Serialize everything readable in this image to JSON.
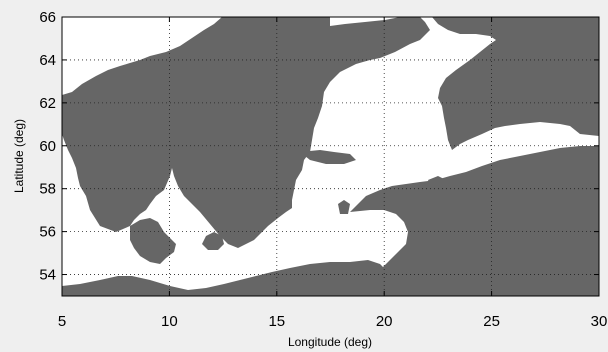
{
  "figure": {
    "xlabel": "Longitude (deg)",
    "ylabel": "Latitude (deg)"
  },
  "chart_data": {
    "type": "heatmap",
    "xlim": [
      5,
      30
    ],
    "ylim": [
      53,
      66
    ],
    "x_ticks": [
      5,
      10,
      15,
      20,
      25,
      30
    ],
    "y_ticks": [
      54,
      56,
      58,
      60,
      62,
      64,
      66
    ],
    "x_tick_labels": [
      "5",
      "10",
      "15",
      "20",
      "25",
      "30"
    ],
    "y_tick_labels": [
      "54",
      "56",
      "58",
      "60",
      "62",
      "64",
      "66"
    ],
    "grid": true,
    "colors": {
      "land": "#666666",
      "water": "#ffffff",
      "background": "#efefef"
    },
    "classes": [
      "land",
      "water"
    ]
  }
}
